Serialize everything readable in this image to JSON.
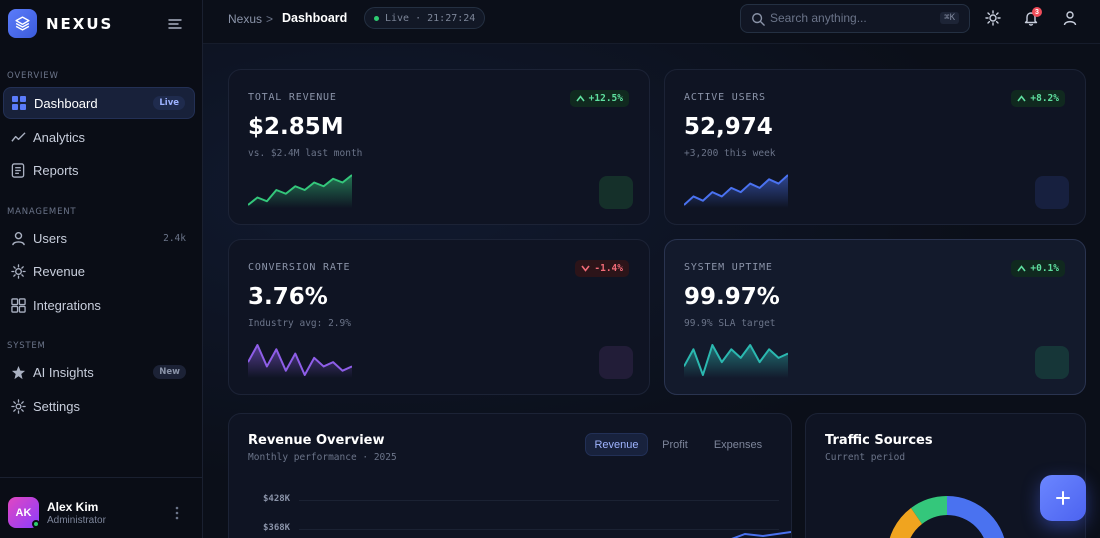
{
  "brand": {
    "name": "NEXUS"
  },
  "sidebar": {
    "sections": [
      {
        "label": "OVERVIEW"
      },
      {
        "label": "MANAGEMENT"
      },
      {
        "label": "SYSTEM"
      }
    ],
    "items": [
      {
        "label": "Dashboard",
        "icon": "grid-icon",
        "badge": "Live",
        "active": true
      },
      {
        "label": "Analytics",
        "icon": "trend-icon"
      },
      {
        "label": "Reports",
        "icon": "document-icon"
      },
      {
        "label": "Users",
        "icon": "user-icon",
        "count": "2.4k"
      },
      {
        "label": "Revenue",
        "icon": "sun-icon"
      },
      {
        "label": "Integrations",
        "icon": "apps-icon"
      },
      {
        "label": "AI Insights",
        "icon": "star-icon",
        "badge": "New"
      },
      {
        "label": "Settings",
        "icon": "gear-icon"
      }
    ]
  },
  "user": {
    "initials": "AK",
    "name": "Alex Kim",
    "role": "Administrator"
  },
  "topbar": {
    "breadcrumb_root": "Nexus",
    "breadcrumb_sep": ">",
    "breadcrumb_current": "Dashboard",
    "live_text": "Live · 21:27:24",
    "search_placeholder": "Search anything...",
    "search_shortcut": "⌘K",
    "notification_count": "3"
  },
  "stats": [
    {
      "title": "TOTAL REVENUE",
      "value": "$2.85M",
      "sub": "vs. $2.4M last month",
      "delta": "+12.5%",
      "direction": "up",
      "color": "#34c77b",
      "spark": [
        2,
        4,
        3,
        6,
        5,
        7,
        6,
        8,
        7,
        9,
        8,
        10
      ]
    },
    {
      "title": "ACTIVE USERS",
      "value": "52,974",
      "sub": "+3,200 this week",
      "delta": "+8.2%",
      "direction": "up",
      "color": "#4a72f0",
      "spark": [
        2,
        4,
        3,
        5,
        4,
        6,
        5,
        7,
        6,
        8,
        7,
        9
      ]
    },
    {
      "title": "CONVERSION RATE",
      "value": "3.76%",
      "sub": "Industry avg: 2.9%",
      "delta": "-1.4%",
      "direction": "down",
      "color": "#8e5ee8",
      "spark": [
        6,
        10,
        5,
        9,
        4,
        8,
        3,
        7,
        5,
        6,
        4,
        5
      ]
    },
    {
      "title": "SYSTEM UPTIME",
      "value": "99.97%",
      "sub": "99.9% SLA target",
      "delta": "+0.1%",
      "direction": "up",
      "color": "#2bb8b0",
      "spark": [
        4,
        8,
        2,
        9,
        5,
        8,
        6,
        9,
        5,
        8,
        6,
        7
      ]
    }
  ],
  "revenue_panel": {
    "title": "Revenue Overview",
    "subtitle": "Monthly performance · 2025",
    "tabs": [
      "Revenue",
      "Profit",
      "Expenses"
    ],
    "y_labels": [
      "$428K",
      "$368K"
    ]
  },
  "traffic_panel": {
    "title": "Traffic Sources",
    "subtitle": "Current period"
  },
  "fab": {
    "label": "+"
  }
}
